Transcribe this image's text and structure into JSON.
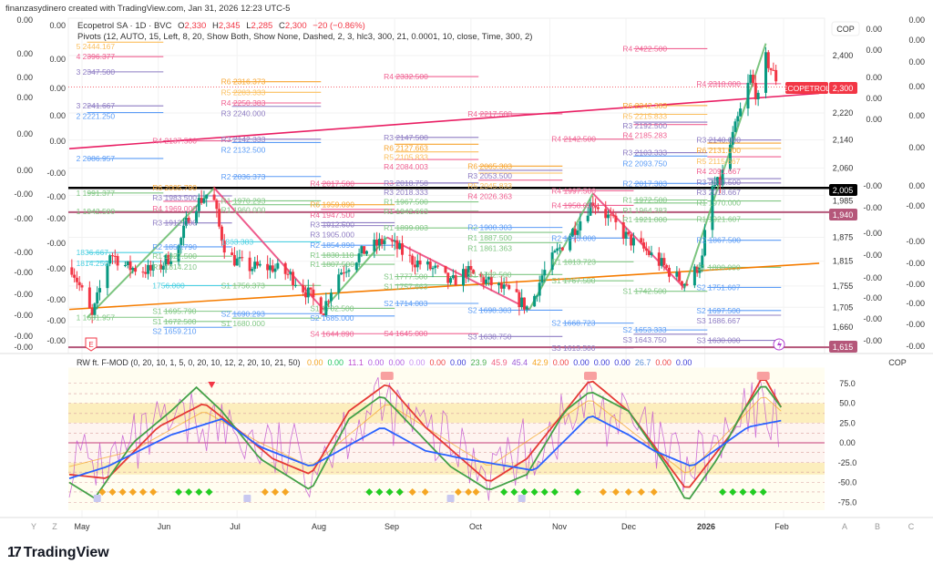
{
  "header": {
    "credit": "finanzasydinero created with TradingView.com, Jan 31, 2026 12:23 UTC-5"
  },
  "legend": {
    "symbol": "Ecopetrol SA · 1D · BVC",
    "o_label": "O",
    "o": "2,330",
    "h_label": "H",
    "h": "2,345",
    "l_label": "L",
    "l": "2,285",
    "c_label": "C",
    "c": "2,300",
    "change": "−20 (−0.86%)",
    "pivots": "Pivots (12, AUTO, 15, Left, 8, 20, Show Both, Show None, Dashed, 2, 3, hlc3, 300, 21, 0.0001, 10, close, Time, 300, 2)"
  },
  "oscillator_legend": {
    "name": "RW ft. F-MOD (0, 20, 10, 1, 5, 0, 20, 10, 12, 2, 20, 10, 21, 50)",
    "values": [
      {
        "v": "0.00",
        "c": "#f5a623"
      },
      {
        "v": "0.00",
        "c": "#22c55e"
      },
      {
        "v": "11.1",
        "c": "#c04fd0"
      },
      {
        "v": "0.00",
        "c": "#b05ae0"
      },
      {
        "v": "0.00",
        "c": "#b05ae0"
      },
      {
        "v": "0.00",
        "c": "#c890f0"
      },
      {
        "v": "0.00",
        "c": "#ef4444"
      },
      {
        "v": "0.00",
        "c": "#3b3bd6"
      },
      {
        "v": "23.9",
        "c": "#4caf50"
      },
      {
        "v": "45.9",
        "c": "#f06080"
      },
      {
        "v": "45.4",
        "c": "#9c5ad6"
      },
      {
        "v": "42.9",
        "c": "#f5a623"
      },
      {
        "v": "0.00",
        "c": "#ef4444"
      },
      {
        "v": "0.00",
        "c": "#3b3bd6"
      },
      {
        "v": "0.00",
        "c": "#3b3bd6"
      },
      {
        "v": "0.00",
        "c": "#3b3bd6"
      },
      {
        "v": "26.7",
        "c": "#5b8fd6"
      },
      {
        "v": "0.00",
        "c": "#ef4444"
      },
      {
        "v": "0.00",
        "c": "#3b3bd6"
      }
    ]
  },
  "price_axis": {
    "currency": "COP",
    "ticks": [
      "2,400",
      "2,220",
      "2,140",
      "2,060",
      "1,985",
      "1,875",
      "1,815",
      "1,755",
      "1,705",
      "1,660"
    ],
    "tick_values": [
      2400,
      2220,
      2140,
      2060,
      1985,
      1875,
      1815,
      1755,
      1705,
      1660
    ],
    "last_price_label": "2,300",
    "symbol_tag": "ECOPETROL",
    "level_2005": "2,005",
    "level_1940": "1,940",
    "level_1615": "1,615"
  },
  "left_scales": {
    "col1": [
      "0.00",
      "0.00",
      "0.00",
      "0.00",
      "0.00",
      "0.00",
      "-0.00",
      "-0.00",
      "-0.00",
      "-0.00",
      "-0.00",
      "-0.00",
      "-0.00",
      "-0.00"
    ],
    "col2": [
      "0.00",
      "0.00",
      "0.00",
      "0.00",
      "0.00",
      "-0.00",
      "-0.00",
      "-0.00",
      "-0.00",
      "-0.00",
      "-0.00",
      "-0.00",
      "-0.00"
    ]
  },
  "right_scales": {
    "col1": [
      "0.00",
      "0.00",
      "0.00",
      "0.00",
      "0.00",
      "-0.00",
      "-0.00",
      "-0.00",
      "-0.00",
      "-0.00",
      "-0.00",
      "-0.00",
      "-0.00"
    ],
    "col2": [
      "0.00",
      "0.00",
      "0.00",
      "0.00",
      "0.00",
      "0.00",
      "0.00",
      "-0.00",
      "-0.00",
      "-0.00",
      "-0.00",
      "-0.00",
      "-0.00",
      "-0.00"
    ]
  },
  "time_axis": [
    "Y",
    "Z",
    "May",
    "Jun",
    "Jul",
    "Aug",
    "Sep",
    "Oct",
    "Nov",
    "Dec",
    "2026",
    "Feb",
    "A",
    "B",
    "C"
  ],
  "oscillator_axis": {
    "currency": "COP",
    "ticks": [
      "75.0",
      "50.0",
      "25.0",
      "0.00",
      "-25.0",
      "-50.0",
      "-75.0"
    ],
    "tick_values": [
      75,
      50,
      25,
      0,
      -25,
      -50,
      -75
    ]
  },
  "brand": "TradingView",
  "colors": {
    "up": "#089981",
    "down": "#f23645",
    "R6": "#f7a531",
    "R5": "#fbbf5e",
    "R4": "#f06292",
    "R3": "#8e7cc3",
    "R2": "#5b9cf6",
    "R1": "#81c784",
    "P": "#4dd0e1",
    "trend_pink": "#e91e63",
    "trend_orange": "#f57c00",
    "zig_green": "#66bb6a",
    "zig_pink": "#ec407a",
    "level": "#b5577a"
  },
  "chart_data": {
    "type": "candlestick",
    "title": "Ecopetrol SA · 1D · BVC",
    "x_unit": "days since May 1 2025",
    "y_scale": "log",
    "ylim": [
      1600,
      2450
    ],
    "close_waypoints": [
      [
        -4,
        1800
      ],
      [
        4,
        1681
      ],
      [
        11,
        1836
      ],
      [
        18,
        1800
      ],
      [
        29,
        1790
      ],
      [
        38,
        1850
      ],
      [
        43,
        1950
      ],
      [
        51,
        2000
      ],
      [
        54,
        1900
      ],
      [
        57,
        1830
      ],
      [
        65,
        1800
      ],
      [
        75,
        1800
      ],
      [
        82,
        1780
      ],
      [
        95,
        1700
      ],
      [
        100,
        1780
      ],
      [
        111,
        1840
      ],
      [
        120,
        1870
      ],
      [
        129,
        1820
      ],
      [
        140,
        1790
      ],
      [
        145,
        1760
      ],
      [
        151,
        1790
      ],
      [
        161,
        1760
      ],
      [
        168,
        1740
      ],
      [
        176,
        1700
      ],
      [
        181,
        1780
      ],
      [
        186,
        1830
      ],
      [
        194,
        1900
      ],
      [
        201,
        1970
      ],
      [
        208,
        1920
      ],
      [
        215,
        1870
      ],
      [
        222,
        1840
      ],
      [
        233,
        1780
      ],
      [
        238,
        1760
      ],
      [
        244,
        1820
      ],
      [
        247,
        2000
      ],
      [
        251,
        2020
      ],
      [
        254,
        2100
      ],
      [
        260,
        2250
      ],
      [
        263,
        2330
      ],
      [
        266,
        2260
      ],
      [
        269,
        2390
      ],
      [
        272,
        2340
      ],
      [
        275,
        2300
      ]
    ],
    "last": {
      "open": 2330,
      "high": 2345,
      "low": 2285,
      "close": 2300
    },
    "horizontal_levels": [
      2005,
      1940,
      1615
    ],
    "current_price": 2300,
    "trendlines": [
      {
        "name": "resistance",
        "from": [
          -5,
          2115
        ],
        "to": [
          290,
          2280
        ],
        "color": "trend_pink"
      },
      {
        "name": "support",
        "from": [
          -5,
          1700
        ],
        "to": [
          290,
          1810
        ],
        "color": "trend_orange"
      }
    ],
    "zigzag": [
      [
        2,
        1681
      ],
      [
        52,
        2005
      ],
      [
        95,
        1700
      ],
      [
        120,
        1875
      ],
      [
        176,
        1700
      ],
      [
        201,
        1990
      ],
      [
        237,
        1750
      ],
      [
        269,
        2440
      ]
    ],
    "pivot_periods": [
      [
        2,
        32
      ],
      [
        32,
        59
      ],
      [
        59,
        94
      ],
      [
        94,
        123
      ],
      [
        123,
        156
      ],
      [
        156,
        189
      ],
      [
        189,
        217
      ],
      [
        217,
        246
      ],
      [
        246,
        275
      ]
    ],
    "pivots": [
      [
        0,
        "5",
        2444.167
      ],
      [
        0,
        "4",
        2396.377
      ],
      [
        0,
        "3",
        2347.5
      ],
      [
        0,
        "3",
        2241.667
      ],
      [
        0,
        "2",
        2221.25
      ],
      [
        0,
        "2",
        2086.957
      ],
      [
        0,
        "1",
        1991.377
      ],
      [
        0,
        "1",
        1942.5
      ],
      [
        0,
        "P",
        1836.667
      ],
      [
        0,
        "P",
        1814.25
      ],
      [
        0,
        "1",
        1681.957
      ],
      [
        1,
        "R4",
        2137.5
      ],
      [
        1,
        "R6",
        2005.79
      ],
      [
        1,
        "R3",
        1983.5
      ],
      [
        1,
        "R4",
        1969.0
      ],
      [
        1,
        "R3",
        1912.0
      ],
      [
        1,
        "R2",
        1850.79
      ],
      [
        1,
        "R1",
        1827.5
      ],
      [
        1,
        "R1",
        1814.21
      ],
      [
        1,
        "P",
        1756.0
      ],
      [
        1,
        "S1",
        1695.79
      ],
      [
        1,
        "S1",
        1672.5
      ],
      [
        1,
        "S2",
        1659.21
      ],
      [
        2,
        "R6",
        2316.373
      ],
      [
        2,
        "R5",
        2283.333
      ],
      [
        2,
        "R4",
        2250.383
      ],
      [
        2,
        "R3",
        2240.0
      ],
      [
        2,
        "R3",
        2142.333
      ],
      [
        2,
        "R2",
        2132.5
      ],
      [
        2,
        "R2",
        2036.373
      ],
      [
        2,
        "R1",
        1970.293
      ],
      [
        2,
        "R1",
        1960.0
      ],
      [
        2,
        "P",
        1863.383
      ],
      [
        2,
        "S1",
        1756.373
      ],
      [
        2,
        "S2",
        1690.293
      ],
      [
        2,
        "S1",
        1680.0
      ],
      [
        3,
        "R4",
        2017.5
      ],
      [
        3,
        "R6",
        1959.89
      ],
      [
        3,
        "R4",
        1947.5
      ],
      [
        3,
        "R3",
        1912.5
      ],
      [
        3,
        "R3",
        1905.0
      ],
      [
        3,
        "R2",
        1854.89
      ],
      [
        3,
        "R1",
        1830.11
      ],
      [
        3,
        "R1",
        1807.5
      ],
      [
        3,
        "S1",
        1702.5
      ],
      [
        3,
        "S2",
        1685.0
      ],
      [
        3,
        "S4",
        1644.89
      ],
      [
        4,
        "R4",
        2332.5
      ],
      [
        4,
        "R3",
        2147.5
      ],
      [
        4,
        "R6",
        2127.663
      ],
      [
        4,
        "R5",
        2105.833
      ],
      [
        4,
        "R4",
        2084.003
      ],
      [
        4,
        "R3",
        2018.758
      ],
      [
        4,
        "R3",
        2018.333
      ],
      [
        4,
        "R1",
        1967.5
      ],
      [
        4,
        "R1",
        1942.663
      ],
      [
        4,
        "R1",
        1899.003
      ],
      [
        4,
        "S1",
        1777.5
      ],
      [
        4,
        "S1",
        1757.663
      ],
      [
        4,
        "S2",
        1714.003
      ],
      [
        4,
        "S4",
        1645.0
      ],
      [
        5,
        "R4",
        2217.5
      ],
      [
        5,
        "R6",
        2065.303
      ],
      [
        5,
        "R3",
        2053.5
      ],
      [
        5,
        "R5",
        2045.833
      ],
      [
        5,
        "R4",
        2026.363
      ],
      [
        5,
        "R2",
        1900.303
      ],
      [
        5,
        "R1",
        1887.5
      ],
      [
        5,
        "R1",
        1861.363
      ],
      [
        5,
        "S1",
        1782.5
      ],
      [
        5,
        "S2",
        1698.303
      ],
      [
        5,
        "S3",
        1638.75
      ],
      [
        6,
        "R4",
        2142.5
      ],
      [
        6,
        "R4",
        1997.5
      ],
      [
        6,
        "R4",
        1958.0
      ],
      [
        6,
        "R2",
        1873.0
      ],
      [
        6,
        "R1",
        1813.723
      ],
      [
        6,
        "S1",
        1767.5
      ],
      [
        6,
        "S2",
        1668.723
      ],
      [
        6,
        "S3",
        1613.5
      ],
      [
        7,
        "R4",
        2422.5
      ],
      [
        7,
        "R6",
        2242.383
      ],
      [
        7,
        "R5",
        2215.833
      ],
      [
        7,
        "R3",
        2192.5
      ],
      [
        7,
        "R4",
        2185.283
      ],
      [
        7,
        "R3",
        2103.333
      ],
      [
        7,
        "R2",
        2093.75
      ],
      [
        7,
        "R2",
        2017.383
      ],
      [
        7,
        "R1",
        1972.5
      ],
      [
        7,
        "R1",
        1964.383
      ],
      [
        7,
        "R1",
        1921.0
      ],
      [
        7,
        "S1",
        1742.5
      ],
      [
        7,
        "S2",
        1653.333
      ],
      [
        7,
        "S3",
        1643.75
      ],
      [
        8,
        "R4",
        2310.0
      ],
      [
        8,
        "R3",
        2140.0
      ],
      [
        8,
        "R6",
        2131.0
      ],
      [
        8,
        "R5",
        2115.667
      ],
      [
        8,
        "R4",
        2091.667
      ],
      [
        8,
        "R3",
        2030.5
      ],
      [
        8,
        "R3",
        2018.667
      ],
      [
        8,
        "R1",
        1970.0
      ],
      [
        8,
        "R1",
        1921.607
      ],
      [
        8,
        "R2",
        1867.5
      ],
      [
        8,
        "S1",
        1800.0
      ],
      [
        8,
        "S2",
        1751.607
      ],
      [
        8,
        "S2",
        1697.5
      ],
      [
        8,
        "S3",
        1686.667
      ],
      [
        8,
        "S3",
        1630.0
      ]
    ],
    "oscillator": {
      "ylim": [
        -85,
        95
      ],
      "bands": {
        "upper": [
          25,
          50
        ],
        "lower": [
          -40,
          -25
        ]
      },
      "series": [
        {
          "name": "blue",
          "color": "#2962ff",
          "points": [
            [
              -5,
              -45
            ],
            [
              10,
              -30
            ],
            [
              35,
              10
            ],
            [
              55,
              30
            ],
            [
              70,
              -5
            ],
            [
              90,
              -30
            ],
            [
              118,
              20
            ],
            [
              135,
              -10
            ],
            [
              150,
              -20
            ],
            [
              178,
              -35
            ],
            [
              200,
              35
            ],
            [
              215,
              10
            ],
            [
              225,
              -10
            ],
            [
              240,
              -30
            ],
            [
              262,
              20
            ],
            [
              275,
              28
            ]
          ]
        },
        {
          "name": "green",
          "color": "#43a047",
          "points": [
            [
              -5,
              -50
            ],
            [
              5,
              -70
            ],
            [
              20,
              0
            ],
            [
              35,
              40
            ],
            [
              45,
              70
            ],
            [
              55,
              40
            ],
            [
              70,
              -20
            ],
            [
              90,
              -60
            ],
            [
              105,
              30
            ],
            [
              118,
              60
            ],
            [
              130,
              20
            ],
            [
              145,
              -30
            ],
            [
              160,
              -60
            ],
            [
              175,
              -40
            ],
            [
              190,
              40
            ],
            [
              200,
              65
            ],
            [
              215,
              40
            ],
            [
              230,
              -30
            ],
            [
              238,
              -75
            ],
            [
              250,
              -20
            ],
            [
              260,
              40
            ],
            [
              268,
              75
            ],
            [
              275,
              45
            ]
          ]
        },
        {
          "name": "red",
          "color": "#e53935",
          "points": [
            [
              -5,
              -40
            ],
            [
              10,
              -45
            ],
            [
              30,
              20
            ],
            [
              48,
              50
            ],
            [
              60,
              20
            ],
            [
              75,
              -20
            ],
            [
              90,
              -40
            ],
            [
              105,
              40
            ],
            [
              120,
              75
            ],
            [
              135,
              20
            ],
            [
              160,
              -50
            ],
            [
              175,
              -20
            ],
            [
              200,
              80
            ],
            [
              215,
              40
            ],
            [
              238,
              -60
            ],
            [
              255,
              10
            ],
            [
              268,
              85
            ],
            [
              275,
              45
            ]
          ]
        },
        {
          "name": "orange",
          "color": "#f5a623",
          "points": [
            [
              -5,
              -30
            ],
            [
              20,
              -10
            ],
            [
              48,
              40
            ],
            [
              70,
              0
            ],
            [
              90,
              -30
            ],
            [
              120,
              50
            ],
            [
              160,
              -30
            ],
            [
              200,
              55
            ],
            [
              238,
              -40
            ],
            [
              268,
              60
            ],
            [
              275,
              40
            ]
          ]
        }
      ],
      "markers_orange": [
        8,
        12,
        16,
        20,
        24,
        28,
        72,
        76,
        80,
        125,
        130,
        135,
        148,
        152,
        155,
        205,
        210,
        215,
        220,
        225
      ],
      "markers_green": [
        38,
        42,
        46,
        50,
        113,
        117,
        121,
        125,
        166,
        170,
        174,
        178,
        182,
        186,
        195,
        252,
        256,
        260,
        264,
        268
      ]
    }
  }
}
